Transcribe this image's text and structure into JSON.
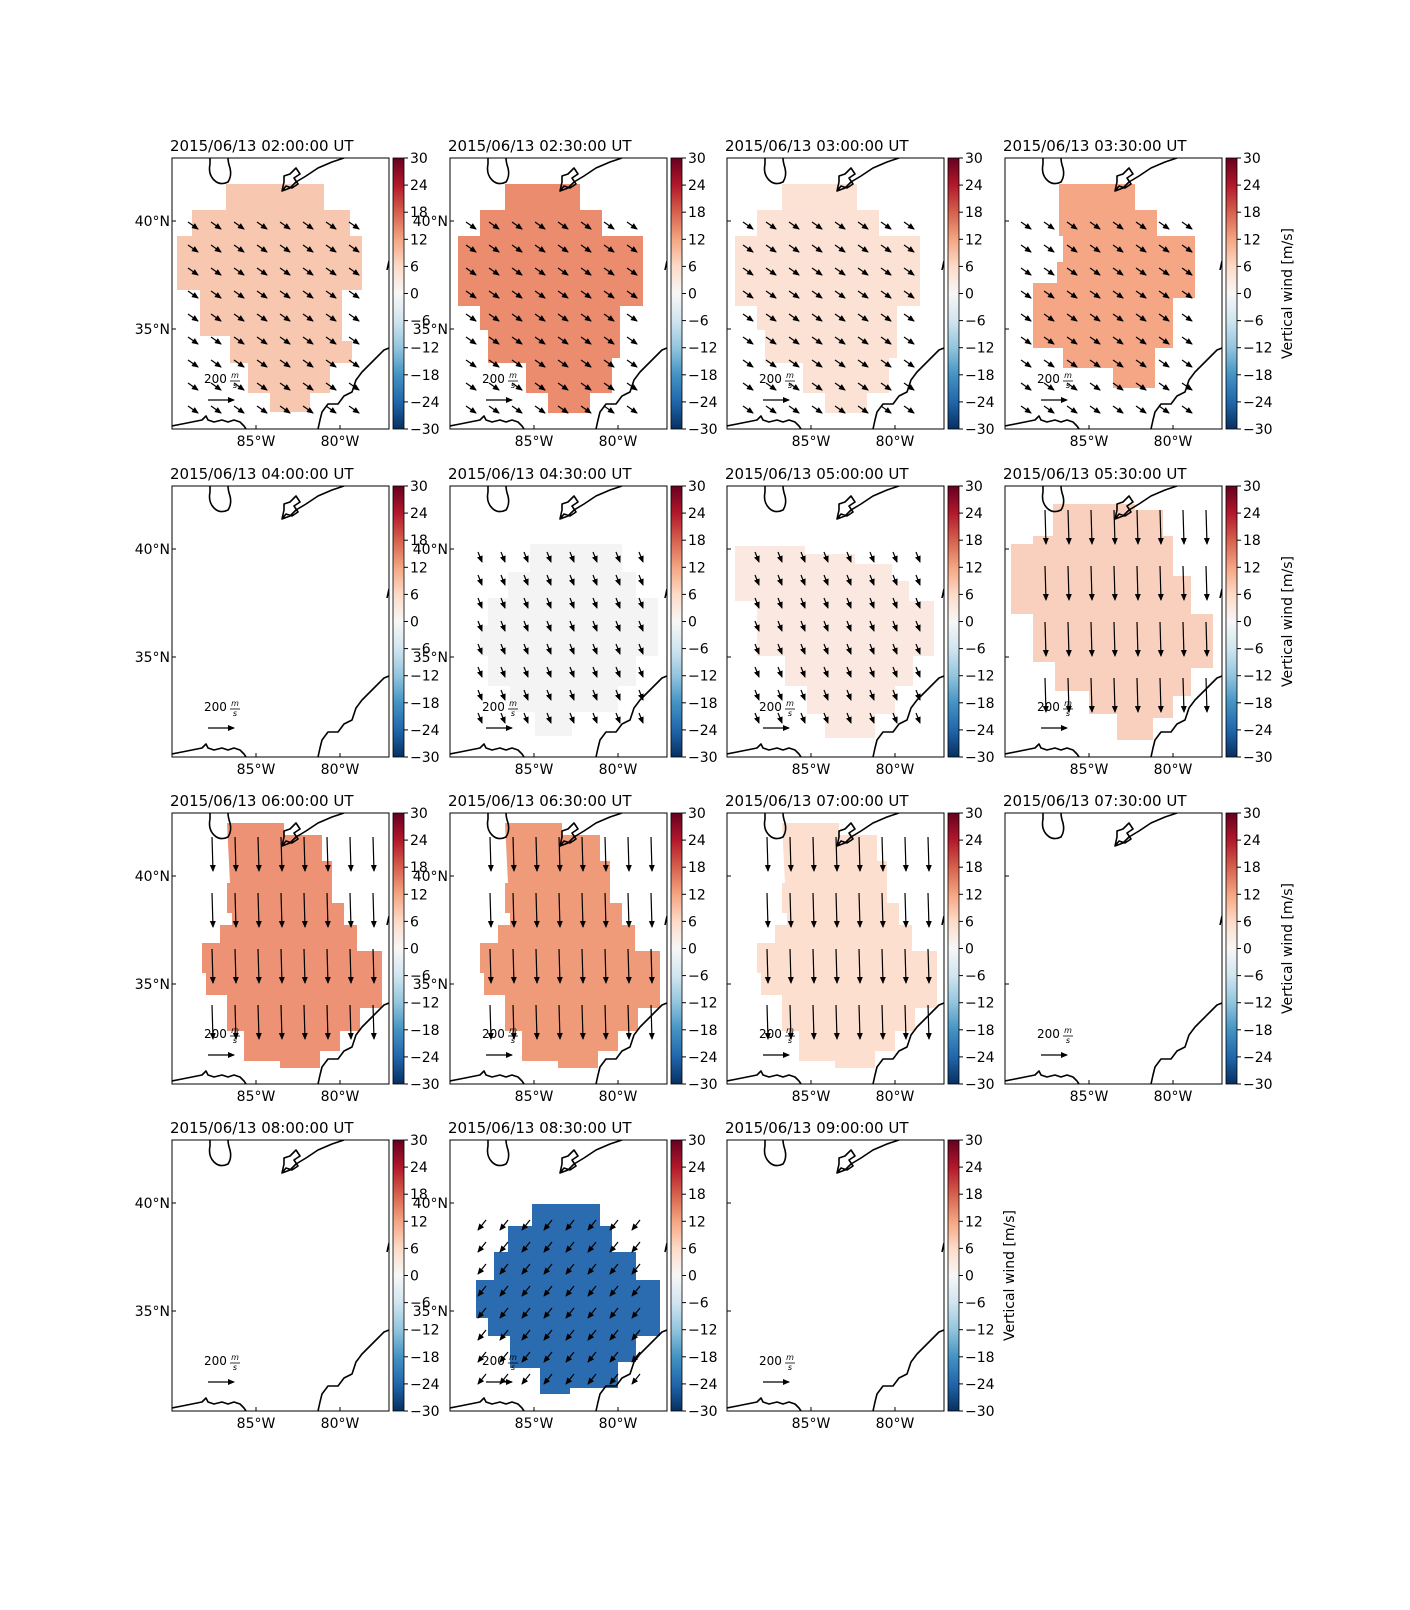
{
  "figure": {
    "colorbar_label": "Vertical wind [m/s]",
    "colorbar_ticks": [
      "30",
      "24",
      "18",
      "12",
      "6",
      "0",
      "−6",
      "−12",
      "−18",
      "−24",
      "−30"
    ],
    "lat_labels": [
      "40°N",
      "35°N"
    ],
    "lon_labels": [
      "85°W",
      "80°W"
    ],
    "arrow_key_label": "200",
    "arrow_key_unit": {
      "num": "m",
      "den": "s"
    }
  },
  "chart_data": [
    {
      "type": "heatmap",
      "title": "2015/06/13 02:00:00 UT",
      "vertical_wind_mps": 6,
      "color": "#f8c7af",
      "arrows": true,
      "arrow_style": "southeast",
      "shape": "a",
      "colorbar_range": [
        -30,
        30
      ],
      "colorbar_label_shown": false,
      "lat_labels_shown": true
    },
    {
      "type": "heatmap",
      "title": "2015/06/13 02:30:00 UT",
      "vertical_wind_mps": 12,
      "color": "#ea8c6d",
      "arrows": true,
      "arrow_style": "southeast",
      "shape": "b",
      "colorbar_range": [
        -30,
        30
      ],
      "colorbar_label_shown": false,
      "lat_labels_shown": true
    },
    {
      "type": "heatmap",
      "title": "2015/06/13 03:00:00 UT",
      "vertical_wind_mps": 3,
      "color": "#fbe2d5",
      "arrows": true,
      "arrow_style": "southeast",
      "shape": "b",
      "colorbar_range": [
        -30,
        30
      ],
      "colorbar_label_shown": false,
      "lat_labels_shown": false
    },
    {
      "type": "heatmap",
      "title": "2015/06/13 03:30:00 UT",
      "vertical_wind_mps": 9,
      "color": "#f4a685",
      "arrows": true,
      "arrow_style": "southeast",
      "shape": "c",
      "colorbar_range": [
        -30,
        30
      ],
      "colorbar_label_shown": true,
      "lat_labels_shown": false
    },
    {
      "type": "heatmap",
      "title": "2015/06/13 04:00:00 UT",
      "vertical_wind_mps": null,
      "color": null,
      "arrows": false,
      "shape": null,
      "colorbar_range": [
        -30,
        30
      ],
      "colorbar_label_shown": false,
      "lat_labels_shown": true
    },
    {
      "type": "heatmap",
      "title": "2015/06/13 04:30:00 UT",
      "vertical_wind_mps": 0,
      "color": "#f4f4f4",
      "arrows": true,
      "arrow_style": "south",
      "shape": "d",
      "colorbar_range": [
        -30,
        30
      ],
      "colorbar_label_shown": false,
      "lat_labels_shown": true
    },
    {
      "type": "heatmap",
      "title": "2015/06/13 05:00:00 UT",
      "vertical_wind_mps": 2,
      "color": "#fbe9e1",
      "arrows": true,
      "arrow_style": "south",
      "shape": "e",
      "colorbar_range": [
        -30,
        30
      ],
      "colorbar_label_shown": false,
      "lat_labels_shown": false
    },
    {
      "type": "heatmap",
      "title": "2015/06/13 05:30:00 UT",
      "vertical_wind_mps": 5,
      "color": "#f9d0bd",
      "arrows": true,
      "arrow_style": "long-south",
      "shape": "f",
      "colorbar_range": [
        -30,
        30
      ],
      "colorbar_label_shown": true,
      "lat_labels_shown": false
    },
    {
      "type": "heatmap",
      "title": "2015/06/13 06:00:00 UT",
      "vertical_wind_mps": 11,
      "color": "#ed9274",
      "arrows": true,
      "arrow_style": "long-south",
      "shape": "g",
      "colorbar_range": [
        -30,
        30
      ],
      "colorbar_label_shown": false,
      "lat_labels_shown": true
    },
    {
      "type": "heatmap",
      "title": "2015/06/13 06:30:00 UT",
      "vertical_wind_mps": 10,
      "color": "#ef9b7a",
      "arrows": true,
      "arrow_style": "long-south",
      "shape": "g",
      "colorbar_range": [
        -30,
        30
      ],
      "colorbar_label_shown": false,
      "lat_labels_shown": true
    },
    {
      "type": "heatmap",
      "title": "2015/06/13 07:00:00 UT",
      "vertical_wind_mps": 4,
      "color": "#fcdfcf",
      "arrows": true,
      "arrow_style": "long-south",
      "shape": "g",
      "colorbar_range": [
        -30,
        30
      ],
      "colorbar_label_shown": false,
      "lat_labels_shown": false
    },
    {
      "type": "heatmap",
      "title": "2015/06/13 07:30:00 UT",
      "vertical_wind_mps": null,
      "color": null,
      "arrows": false,
      "shape": null,
      "colorbar_range": [
        -30,
        30
      ],
      "colorbar_label_shown": true,
      "lat_labels_shown": false
    },
    {
      "type": "heatmap",
      "title": "2015/06/13 08:00:00 UT",
      "vertical_wind_mps": null,
      "color": null,
      "arrows": false,
      "shape": null,
      "colorbar_range": [
        -30,
        30
      ],
      "colorbar_label_shown": false,
      "lat_labels_shown": true
    },
    {
      "type": "heatmap",
      "title": "2015/06/13 08:30:00 UT",
      "vertical_wind_mps": -22,
      "color": "#2b6cb0",
      "arrows": true,
      "arrow_style": "southwest",
      "shape": "h",
      "colorbar_range": [
        -30,
        30
      ],
      "colorbar_label_shown": false,
      "lat_labels_shown": true
    },
    {
      "type": "heatmap",
      "title": "2015/06/13 09:00:00 UT",
      "vertical_wind_mps": null,
      "color": null,
      "arrows": false,
      "shape": null,
      "colorbar_range": [
        -30,
        30
      ],
      "colorbar_label_shown": true,
      "lat_labels_shown": false
    }
  ],
  "colormap": [
    "#053061",
    "#2166ac",
    "#4393c3",
    "#92c5de",
    "#d1e5f0",
    "#f7f7f7",
    "#fddbc7",
    "#f4a582",
    "#d6604d",
    "#b2182b",
    "#67001f"
  ]
}
